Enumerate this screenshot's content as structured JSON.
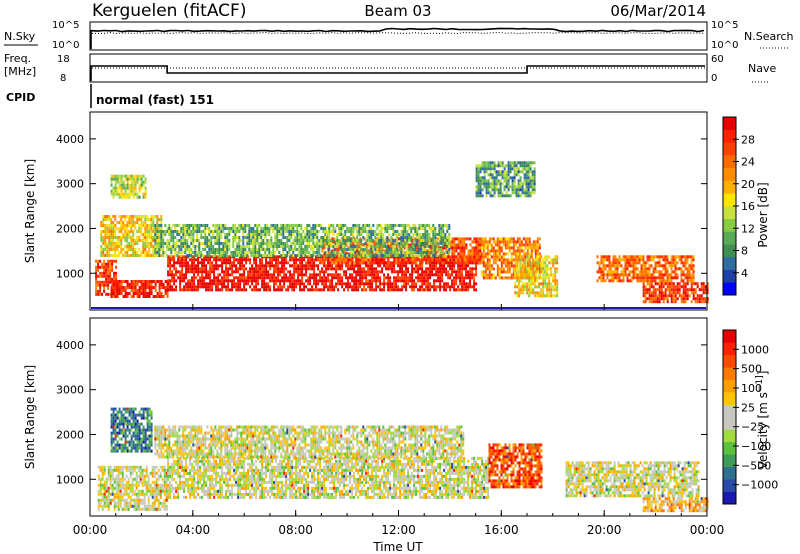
{
  "header": {
    "station": "Kerguelen (fitACF)",
    "beam": "Beam 03",
    "date": "06/Mar/2014"
  },
  "top_panels": {
    "nsky_label": "N.Sky",
    "nsky_ticks": [
      "10^5",
      "10^0"
    ],
    "nsearch_label": "N.Search",
    "freq_label_1": "Freq.",
    "freq_label_2": "[MHz]",
    "freq_ticks": [
      "18",
      "8"
    ],
    "nave_label": "Nave",
    "nave_ticks": [
      "60",
      "0"
    ],
    "cpid_label": "CPID",
    "cpid_value": "normal (fast) 151"
  },
  "chart_data": [
    {
      "type": "heatmap",
      "panel": "power",
      "ylabel": "Slant Range [km]",
      "xlabel": "",
      "ylim": [
        180,
        4600
      ],
      "yticks": [
        1000,
        2000,
        3000,
        4000
      ],
      "xlim": [
        0,
        24
      ],
      "colorbar": {
        "label": "Power [dB]",
        "tick_labels": [
          "28",
          "24",
          "20",
          "16",
          "12",
          "8",
          "4"
        ],
        "colors": [
          "#0000ff",
          "#1f3fa8",
          "#2f6fa0",
          "#3f9050",
          "#5aaa5a",
          "#88cc44",
          "#c8e040",
          "#ffe400",
          "#ffb000",
          "#ff8c00",
          "#ff6a00",
          "#ff4000",
          "#ff2000",
          "#e80000"
        ]
      },
      "echo_regions": [
        {
          "t0": 0.2,
          "t1": 1.0,
          "r0": 500,
          "r1": 1300,
          "level": 0.85
        },
        {
          "t0": 0.8,
          "t1": 3.0,
          "r0": 450,
          "r1": 850,
          "level": 0.9
        },
        {
          "t0": 0.4,
          "t1": 2.8,
          "r0": 1400,
          "r1": 2300,
          "level": 0.55
        },
        {
          "t0": 0.8,
          "t1": 2.2,
          "r0": 2700,
          "r1": 3200,
          "level": 0.45
        },
        {
          "t0": 3.0,
          "t1": 15.0,
          "r0": 600,
          "r1": 1400,
          "level": 0.95
        },
        {
          "t0": 9.0,
          "t1": 15.2,
          "r0": 1200,
          "r1": 1800,
          "level": 0.8
        },
        {
          "t0": 2.5,
          "t1": 14.0,
          "r0": 1400,
          "r1": 2100,
          "level": 0.35
        },
        {
          "t0": 15.2,
          "t1": 17.5,
          "r0": 900,
          "r1": 1800,
          "level": 0.7
        },
        {
          "t0": 16.5,
          "t1": 18.2,
          "r0": 500,
          "r1": 1400,
          "level": 0.55
        },
        {
          "t0": 19.7,
          "t1": 23.5,
          "r0": 800,
          "r1": 1400,
          "level": 0.75
        },
        {
          "t0": 21.5,
          "t1": 24.0,
          "r0": 350,
          "r1": 800,
          "level": 0.85
        },
        {
          "t0": 15.0,
          "t1": 17.3,
          "r0": 2700,
          "r1": 3500,
          "level": 0.3
        }
      ]
    },
    {
      "type": "heatmap",
      "panel": "velocity",
      "ylabel": "Slant Range [km]",
      "xlabel": "Time UT",
      "ylim": [
        180,
        4600
      ],
      "yticks": [
        1000,
        2000,
        3000,
        4000
      ],
      "xlim": [
        0,
        24
      ],
      "xtick_labels": [
        "00:00",
        "04:00",
        "08:00",
        "12:00",
        "16:00",
        "20:00",
        "00:00"
      ],
      "colorbar": {
        "label": "Velocity [m s^-1]",
        "tick_labels": [
          "1000",
          "500",
          "100",
          "25",
          "−25",
          "−100",
          "−500",
          "−1000"
        ],
        "colors": [
          "#1a1ab0",
          "#2a4aa8",
          "#2f6f8f",
          "#3f9b5a",
          "#5ec040",
          "#a0dc40",
          "#c8c8c0",
          "#c8c8c0",
          "#ffc400",
          "#ffa000",
          "#ff7a00",
          "#ff4a00",
          "#ff2000",
          "#e80000"
        ]
      },
      "echo_regions": [
        {
          "t0": 0.3,
          "t1": 3.0,
          "r0": 350,
          "r1": 1300,
          "level": 0.5
        },
        {
          "t0": 3.0,
          "t1": 15.5,
          "r0": 600,
          "r1": 1500,
          "level": 0.5
        },
        {
          "t0": 2.5,
          "t1": 14.5,
          "r0": 1500,
          "r1": 2200,
          "level": 0.5
        },
        {
          "t0": 15.5,
          "t1": 17.6,
          "r0": 800,
          "r1": 1800,
          "level": 0.82
        },
        {
          "t0": 18.5,
          "t1": 23.7,
          "r0": 600,
          "r1": 1400,
          "level": 0.5
        },
        {
          "t0": 0.8,
          "t1": 2.4,
          "r0": 1600,
          "r1": 2600,
          "level": 0.2
        },
        {
          "t0": 21.5,
          "t1": 24.0,
          "r0": 300,
          "r1": 600,
          "level": 0.64
        }
      ]
    }
  ]
}
